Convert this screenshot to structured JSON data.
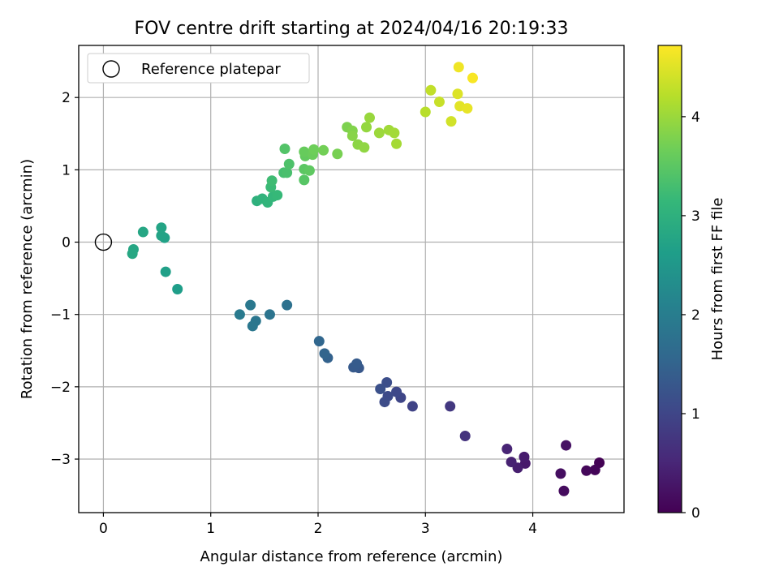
{
  "chart_data": {
    "type": "scatter",
    "title": "FOV centre drift starting at 2024/04/16 20:19:33",
    "xlabel": "Angular distance from reference (arcmin)",
    "ylabel": "Rotation from reference (arcmin)",
    "xlim": [
      -0.23,
      4.85
    ],
    "ylim": [
      -3.74,
      2.72
    ],
    "xticks": [
      0,
      1,
      2,
      3,
      4
    ],
    "yticks": [
      -3,
      -2,
      -1,
      0,
      1,
      2
    ],
    "grid": true,
    "legend": {
      "position": "top-left",
      "entries": [
        "Reference platepar"
      ]
    },
    "reference_point": {
      "x": 0,
      "y": 0,
      "label": "Reference platepar"
    },
    "colorbar": {
      "label": "Hours from first FF file",
      "colormap": "viridis",
      "range": [
        0,
        4.72
      ],
      "ticks": [
        0,
        1,
        2,
        3,
        4
      ],
      "colors": [
        "#440154",
        "#482878",
        "#3e4989",
        "#31688e",
        "#26828e",
        "#1f9e89",
        "#35b779",
        "#6ece58",
        "#b5de2b",
        "#fde725"
      ]
    },
    "points": [
      {
        "x": 4.62,
        "y": -3.05,
        "c": 0.02
      },
      {
        "x": 4.58,
        "y": -3.15,
        "c": 0.06
      },
      {
        "x": 4.5,
        "y": -3.16,
        "c": 0.09
      },
      {
        "x": 4.29,
        "y": -3.44,
        "c": 0.15
      },
      {
        "x": 4.26,
        "y": -3.2,
        "c": 0.18
      },
      {
        "x": 4.31,
        "y": -2.81,
        "c": 0.22
      },
      {
        "x": 3.93,
        "y": -3.06,
        "c": 0.33
      },
      {
        "x": 3.92,
        "y": -2.97,
        "c": 0.36
      },
      {
        "x": 3.86,
        "y": -3.12,
        "c": 0.4
      },
      {
        "x": 3.8,
        "y": -3.04,
        "c": 0.44
      },
      {
        "x": 3.76,
        "y": -2.86,
        "c": 0.48
      },
      {
        "x": 3.37,
        "y": -2.68,
        "c": 0.7
      },
      {
        "x": 3.23,
        "y": -2.27,
        "c": 0.78
      },
      {
        "x": 2.88,
        "y": -2.27,
        "c": 0.96
      },
      {
        "x": 2.77,
        "y": -2.15,
        "c": 1.0
      },
      {
        "x": 2.73,
        "y": -2.07,
        "c": 1.04
      },
      {
        "x": 2.65,
        "y": -2.13,
        "c": 1.07
      },
      {
        "x": 2.62,
        "y": -2.21,
        "c": 1.1
      },
      {
        "x": 2.64,
        "y": -1.94,
        "c": 1.13
      },
      {
        "x": 2.58,
        "y": -2.03,
        "c": 1.16
      },
      {
        "x": 2.38,
        "y": -1.74,
        "c": 1.3
      },
      {
        "x": 2.33,
        "y": -1.73,
        "c": 1.33
      },
      {
        "x": 2.36,
        "y": -1.68,
        "c": 1.36
      },
      {
        "x": 2.09,
        "y": -1.6,
        "c": 1.48
      },
      {
        "x": 2.06,
        "y": -1.54,
        "c": 1.52
      },
      {
        "x": 2.01,
        "y": -1.37,
        "c": 1.56
      },
      {
        "x": 1.71,
        "y": -0.87,
        "c": 1.76
      },
      {
        "x": 1.55,
        "y": -1.0,
        "c": 1.82
      },
      {
        "x": 1.42,
        "y": -1.09,
        "c": 1.86
      },
      {
        "x": 1.39,
        "y": -1.16,
        "c": 1.88
      },
      {
        "x": 1.37,
        "y": -0.87,
        "c": 1.9
      },
      {
        "x": 1.27,
        "y": -1.0,
        "c": 1.94
      },
      {
        "x": 0.69,
        "y": -0.65,
        "c": 2.62
      },
      {
        "x": 0.58,
        "y": -0.41,
        "c": 2.66
      },
      {
        "x": 0.57,
        "y": 0.06,
        "c": 2.7
      },
      {
        "x": 0.54,
        "y": 0.09,
        "c": 2.72
      },
      {
        "x": 0.54,
        "y": 0.2,
        "c": 2.74
      },
      {
        "x": 0.37,
        "y": 0.14,
        "c": 2.78
      },
      {
        "x": 0.28,
        "y": -0.1,
        "c": 2.8
      },
      {
        "x": 0.27,
        "y": -0.16,
        "c": 2.82
      },
      {
        "x": 1.43,
        "y": 0.57,
        "c": 3.0
      },
      {
        "x": 1.48,
        "y": 0.6,
        "c": 3.04
      },
      {
        "x": 1.53,
        "y": 0.55,
        "c": 3.08
      },
      {
        "x": 1.58,
        "y": 0.63,
        "c": 3.12
      },
      {
        "x": 1.62,
        "y": 0.65,
        "c": 3.16
      },
      {
        "x": 1.56,
        "y": 0.76,
        "c": 3.2
      },
      {
        "x": 1.57,
        "y": 0.85,
        "c": 3.24
      },
      {
        "x": 1.68,
        "y": 0.96,
        "c": 3.3
      },
      {
        "x": 1.71,
        "y": 0.96,
        "c": 3.34
      },
      {
        "x": 1.73,
        "y": 1.08,
        "c": 3.38
      },
      {
        "x": 1.69,
        "y": 1.29,
        "c": 3.42
      },
      {
        "x": 1.87,
        "y": 0.86,
        "c": 3.46
      },
      {
        "x": 1.87,
        "y": 1.01,
        "c": 3.5
      },
      {
        "x": 1.92,
        "y": 0.99,
        "c": 3.53
      },
      {
        "x": 1.88,
        "y": 1.19,
        "c": 3.56
      },
      {
        "x": 1.87,
        "y": 1.25,
        "c": 3.6
      },
      {
        "x": 1.95,
        "y": 1.21,
        "c": 3.63
      },
      {
        "x": 1.96,
        "y": 1.28,
        "c": 3.66
      },
      {
        "x": 2.05,
        "y": 1.27,
        "c": 3.7
      },
      {
        "x": 2.18,
        "y": 1.22,
        "c": 3.74
      },
      {
        "x": 2.27,
        "y": 1.59,
        "c": 3.78
      },
      {
        "x": 2.32,
        "y": 1.54,
        "c": 3.82
      },
      {
        "x": 2.32,
        "y": 1.47,
        "c": 3.86
      },
      {
        "x": 2.37,
        "y": 1.35,
        "c": 3.89
      },
      {
        "x": 2.43,
        "y": 1.31,
        "c": 3.92
      },
      {
        "x": 2.45,
        "y": 1.59,
        "c": 3.95
      },
      {
        "x": 2.48,
        "y": 1.72,
        "c": 3.98
      },
      {
        "x": 2.57,
        "y": 1.51,
        "c": 4.01
      },
      {
        "x": 2.66,
        "y": 1.55,
        "c": 4.04
      },
      {
        "x": 2.71,
        "y": 1.51,
        "c": 4.06
      },
      {
        "x": 2.73,
        "y": 1.36,
        "c": 4.08
      },
      {
        "x": 3.0,
        "y": 1.8,
        "c": 4.22
      },
      {
        "x": 3.05,
        "y": 2.1,
        "c": 4.28
      },
      {
        "x": 3.13,
        "y": 1.94,
        "c": 4.33
      },
      {
        "x": 3.24,
        "y": 1.67,
        "c": 4.4
      },
      {
        "x": 3.3,
        "y": 2.05,
        "c": 4.48
      },
      {
        "x": 3.32,
        "y": 1.88,
        "c": 4.52
      },
      {
        "x": 3.39,
        "y": 1.85,
        "c": 4.56
      },
      {
        "x": 3.31,
        "y": 2.42,
        "c": 4.62
      },
      {
        "x": 3.44,
        "y": 2.27,
        "c": 4.68
      }
    ]
  }
}
